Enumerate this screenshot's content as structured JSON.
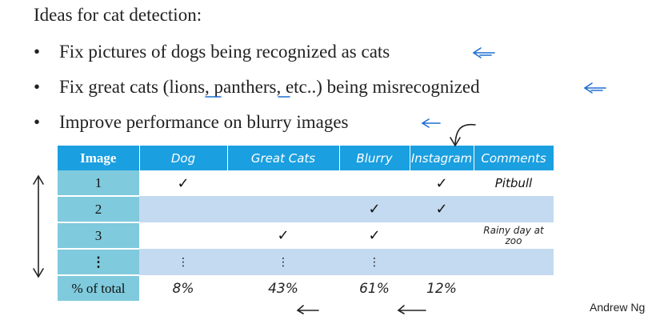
{
  "title": "Ideas for cat detection:",
  "bullets": [
    {
      "symbol": "•",
      "text": "Fix pictures of dogs being recognized as cats"
    },
    {
      "symbol": "•",
      "text": "Fix great cats (lions, panthers, etc..) being misrecognized"
    },
    {
      "symbol": "•",
      "text": "Improve performance on blurry images"
    }
  ],
  "table": {
    "headers": [
      "Image",
      "Dog",
      "Great Cats",
      "Blurry",
      "Instagram",
      "Comments"
    ],
    "rows": [
      {
        "image": "1",
        "dog": "✓",
        "great_cats": "",
        "blurry": "",
        "instagram": "✓",
        "comments": "Pitbull"
      },
      {
        "image": "2",
        "dog": "",
        "great_cats": "",
        "blurry": "✓",
        "instagram": "✓",
        "comments": ""
      },
      {
        "image": "3",
        "dog": "",
        "great_cats": "✓",
        "blurry": "✓",
        "instagram": "",
        "comments": "Rainy day at zoo"
      },
      {
        "image": "⋮",
        "dog": "⋮",
        "great_cats": "⋮",
        "blurry": "⋮",
        "instagram": "",
        "comments": ""
      }
    ],
    "total": {
      "label": "% of total",
      "dog": "8%",
      "great_cats": "43%",
      "blurry": "61%",
      "instagram": "12%",
      "comments": ""
    }
  },
  "author": "Andrew Ng",
  "colors": {
    "header": "#1a9fe0",
    "first_col": "#7fcadc",
    "shade_row": "#c4daf0",
    "ink": "#1f6fd1"
  }
}
